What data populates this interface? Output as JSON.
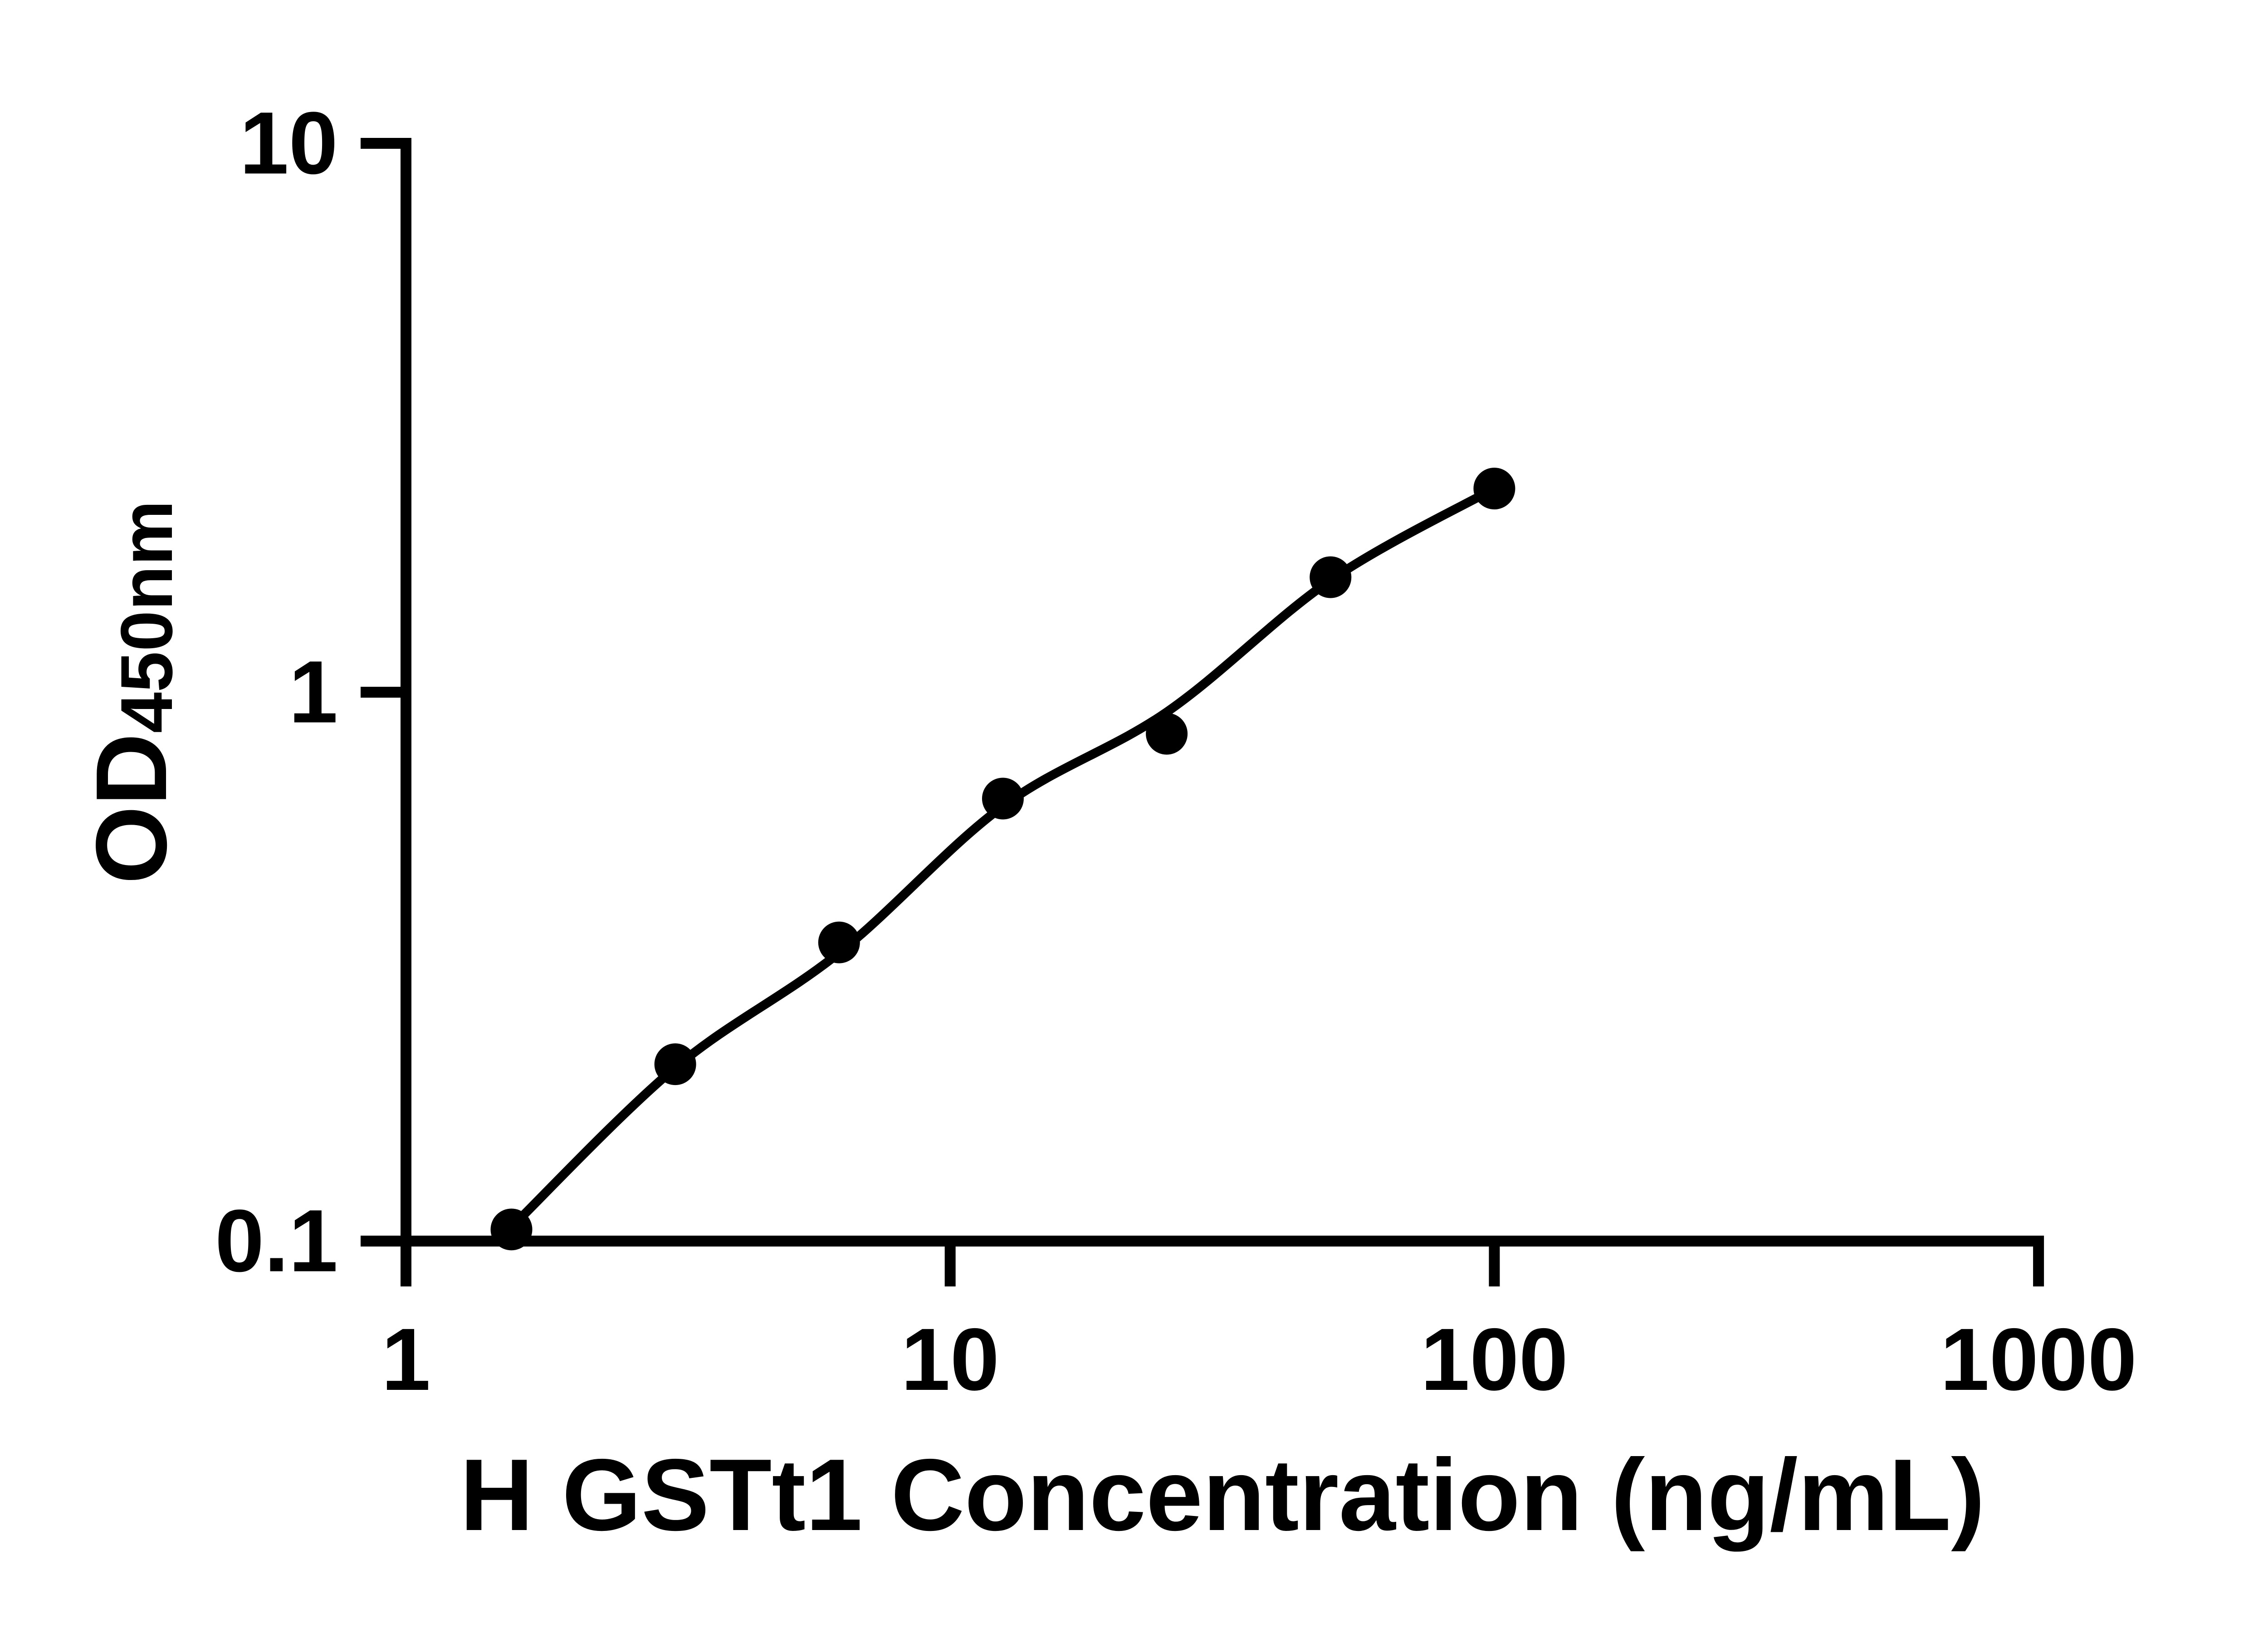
{
  "chart_data": {
    "type": "scatter",
    "title": "",
    "xlabel": "H GSTt1 Concentration (ng/mL)",
    "ylabel_main": "OD",
    "ylabel_sub": "450nm",
    "x_scale": "log10",
    "y_scale": "log10",
    "xlim": [
      1,
      1000
    ],
    "ylim": [
      0.1,
      10
    ],
    "x_tick_values": [
      1,
      10,
      100,
      1000
    ],
    "x_tick_labels": [
      "1",
      "10",
      "100",
      "1000"
    ],
    "y_tick_values": [
      0.1,
      1,
      10
    ],
    "y_tick_labels": [
      "0.1",
      "1",
      "10"
    ],
    "grid": false,
    "legend": false,
    "series": [
      {
        "name": "standard-data-points",
        "type": "scatter",
        "x": [
          1.5625,
          3.125,
          6.25,
          12.5,
          25,
          50,
          100
        ],
        "y": [
          0.105,
          0.21,
          0.35,
          0.64,
          0.84,
          1.62,
          2.35
        ]
      },
      {
        "name": "fitted-curve",
        "type": "line",
        "x": [
          1.5625,
          3.125,
          6.25,
          12.5,
          25,
          50,
          100
        ],
        "y": [
          0.106,
          0.207,
          0.335,
          0.62,
          0.92,
          1.6,
          2.35
        ]
      }
    ],
    "colors": {
      "points": "#000000",
      "curve": "#000000",
      "axes": "#000000",
      "background": "#ffffff"
    }
  }
}
